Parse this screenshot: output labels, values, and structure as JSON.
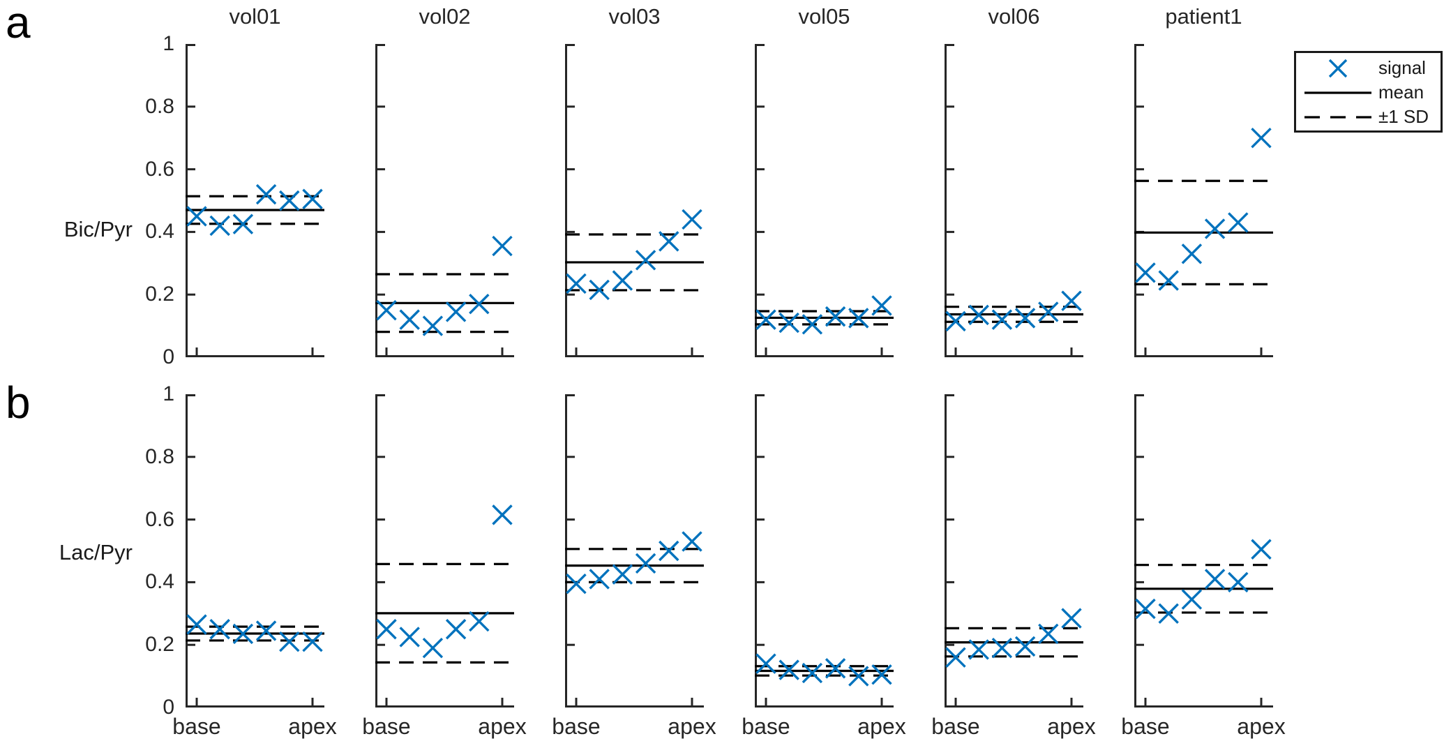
{
  "figure": {
    "panel_a_label": "a",
    "panel_b_label": "b",
    "colors": {
      "signal_marker": "#0072BD",
      "stat_lines": "#000000",
      "axis": "#262626"
    }
  },
  "chart_data": {
    "type": "scatter",
    "marker": "x",
    "ylim": [
      0,
      1
    ],
    "grid": false,
    "x_tick_labels": [
      "base",
      "apex"
    ],
    "y_tick_labels": [
      "0",
      "0.2",
      "0.4",
      "0.6",
      "0.8",
      "1"
    ],
    "y_ticks": [
      0,
      0.2,
      0.4,
      0.6,
      0.8,
      1
    ],
    "legend": [
      "signal",
      "mean",
      "±1 SD"
    ],
    "legend_position": "top-right-outside",
    "rows": [
      {
        "ylabel": "Bic/Pyr",
        "panels": [
          {
            "title": "vol01",
            "signal": [
              0.45,
              0.42,
              0.425,
              0.52,
              0.5,
              0.505
            ],
            "mean": 0.47,
            "sd": 0.044
          },
          {
            "title": "vol02",
            "signal": [
              0.15,
              0.12,
              0.1,
              0.145,
              0.17,
              0.355
            ],
            "mean": 0.173,
            "sd": 0.092
          },
          {
            "title": "vol03",
            "signal": [
              0.235,
              0.215,
              0.245,
              0.31,
              0.37,
              0.44
            ],
            "mean": 0.303,
            "sd": 0.089
          },
          {
            "title": "vol05",
            "signal": [
              0.12,
              0.11,
              0.105,
              0.13,
              0.125,
              0.165
            ],
            "mean": 0.126,
            "sd": 0.021
          },
          {
            "title": "vol06",
            "signal": [
              0.115,
              0.135,
              0.12,
              0.125,
              0.145,
              0.18
            ],
            "mean": 0.137,
            "sd": 0.024
          },
          {
            "title": "patient1",
            "signal": [
              0.27,
              0.245,
              0.33,
              0.41,
              0.43,
              0.7
            ],
            "mean": 0.398,
            "sd": 0.165
          }
        ]
      },
      {
        "ylabel": "Lac/Pyr",
        "panels": [
          {
            "title": "vol01",
            "signal": [
              0.265,
              0.25,
              0.235,
              0.245,
              0.21,
              0.21
            ],
            "mean": 0.236,
            "sd": 0.022
          },
          {
            "title": "vol02",
            "signal": [
              0.25,
              0.225,
              0.19,
              0.25,
              0.275,
              0.615
            ],
            "mean": 0.301,
            "sd": 0.157
          },
          {
            "title": "vol03",
            "signal": [
              0.395,
              0.41,
              0.425,
              0.46,
              0.5,
              0.53
            ],
            "mean": 0.453,
            "sd": 0.053
          },
          {
            "title": "vol05",
            "signal": [
              0.14,
              0.12,
              0.11,
              0.125,
              0.1,
              0.105
            ],
            "mean": 0.117,
            "sd": 0.015
          },
          {
            "title": "vol06",
            "signal": [
              0.16,
              0.185,
              0.19,
              0.195,
              0.235,
              0.285
            ],
            "mean": 0.208,
            "sd": 0.045
          },
          {
            "title": "patient1",
            "signal": [
              0.315,
              0.3,
              0.345,
              0.41,
              0.4,
              0.505
            ],
            "mean": 0.379,
            "sd": 0.076
          }
        ]
      }
    ]
  }
}
